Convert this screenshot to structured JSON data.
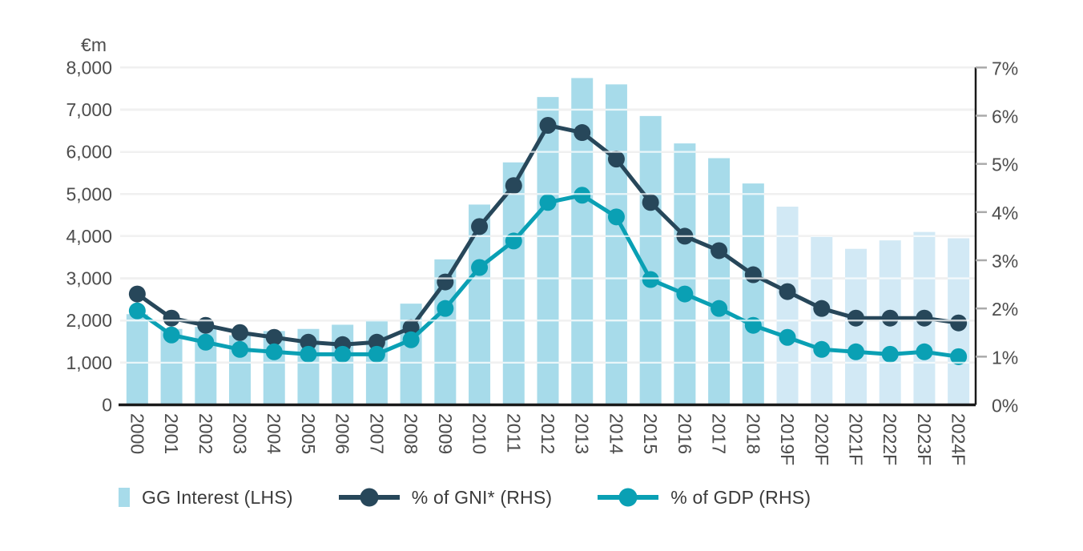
{
  "chart_data": {
    "type": "bar+line combo",
    "title": "",
    "unit_label": "€m",
    "categories": [
      "2000",
      "2001",
      "2002",
      "2003",
      "2004",
      "2005",
      "2006",
      "2007",
      "2008",
      "2009",
      "2010",
      "2011",
      "2012",
      "2013",
      "2014",
      "2015",
      "2016",
      "2017",
      "2018",
      "2019F",
      "2020F",
      "2021F",
      "2022F",
      "2023F",
      "2024F"
    ],
    "series": [
      {
        "name": "GG Interest (LHS)",
        "type": "bar",
        "axis": "left",
        "color": "#a7dbea",
        "forecast_color": "#d2e9f5",
        "forecast_start_index": 19,
        "values": [
          2150,
          1800,
          1850,
          1650,
          1750,
          1800,
          1900,
          2000,
          2400,
          3450,
          4750,
          5750,
          7300,
          7750,
          7600,
          6850,
          6200,
          5850,
          5250,
          4700,
          4000,
          3700,
          3900,
          4100,
          3950
        ]
      },
      {
        "name": "% of GNI* (RHS)",
        "type": "line",
        "axis": "right",
        "color": "#27475a",
        "values": [
          2.3,
          1.8,
          1.65,
          1.5,
          1.4,
          1.3,
          1.25,
          1.3,
          1.6,
          2.55,
          3.7,
          4.55,
          5.8,
          5.65,
          5.1,
          4.2,
          3.5,
          3.2,
          2.7,
          2.35,
          2.0,
          1.8,
          1.8,
          1.8,
          1.7
        ]
      },
      {
        "name": "% of GDP (RHS)",
        "type": "line",
        "axis": "right",
        "color": "#0aa0b4",
        "values": [
          1.95,
          1.45,
          1.3,
          1.15,
          1.1,
          1.05,
          1.05,
          1.05,
          1.35,
          2.0,
          2.85,
          3.4,
          4.2,
          4.35,
          3.9,
          2.6,
          2.3,
          2.0,
          1.65,
          1.4,
          1.15,
          1.1,
          1.05,
          1.1,
          1.0
        ]
      }
    ],
    "left_axis": {
      "min": 0,
      "max": 8000,
      "step": 1000,
      "tick_labels": [
        "0",
        "1,000",
        "2,000",
        "3,000",
        "4,000",
        "5,000",
        "6,000",
        "7,000",
        "8,000"
      ]
    },
    "right_axis": {
      "min": 0,
      "max": 7,
      "step": 1,
      "tick_labels": [
        "0%",
        "1%",
        "2%",
        "3%",
        "4%",
        "5%",
        "6%",
        "7%"
      ]
    },
    "grid": true,
    "legend_position": "bottom"
  },
  "legend": {
    "items": [
      {
        "label": "GG Interest (LHS)"
      },
      {
        "label": "% of GNI* (RHS)"
      },
      {
        "label": "% of GDP (RHS)"
      }
    ]
  },
  "colors": {
    "bar": "#a7dbea",
    "bar_forecast": "#d2e9f5",
    "gni_line": "#27475a",
    "gdp_line": "#0aa0b4",
    "gridline": "#c8c8c8",
    "axis_line": "#1a1a1a",
    "tick": "#aaaaaa",
    "axis_text": "#4d4d4d",
    "legend_text": "#3a3a3a"
  }
}
